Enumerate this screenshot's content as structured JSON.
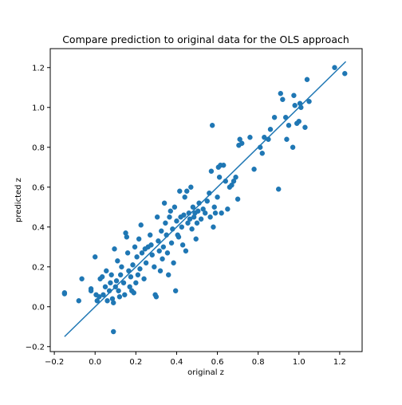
{
  "chart_data": {
    "type": "scatter",
    "title": "Compare prediction to original data for the OLS approach",
    "xlabel": "original z",
    "ylabel": "predicted z",
    "xlim": [
      -0.22,
      1.31
    ],
    "ylim": [
      -0.225,
      1.295
    ],
    "x_ticks": [
      -0.2,
      0.0,
      0.2,
      0.4,
      0.6,
      0.8,
      1.0,
      1.2
    ],
    "x_tick_labels": [
      "−0.2",
      "0.0",
      "0.2",
      "0.4",
      "0.6",
      "0.8",
      "1.0",
      "1.2"
    ],
    "y_ticks": [
      -0.2,
      0.0,
      0.2,
      0.4,
      0.6,
      0.8,
      1.0,
      1.2
    ],
    "y_tick_labels": [
      "−0.2",
      "0.0",
      "0.2",
      "0.4",
      "0.6",
      "0.8",
      "1.0",
      "1.2"
    ],
    "grid": false,
    "legend": null,
    "colors": {
      "points": "#1f77b4",
      "line": "#1f77b4"
    },
    "line": {
      "x": [
        -0.15,
        1.23
      ],
      "y": [
        -0.15,
        1.23
      ]
    },
    "points": [
      [
        -0.15,
        0.07
      ],
      [
        -0.15,
        0.065
      ],
      [
        -0.08,
        0.03
      ],
      [
        -0.065,
        0.14
      ],
      [
        -0.02,
        0.09
      ],
      [
        -0.02,
        0.08
      ],
      [
        0.0,
        0.25
      ],
      [
        0.005,
        0.06
      ],
      [
        0.01,
        0.03
      ],
      [
        0.02,
        0.05
      ],
      [
        0.025,
        0.14
      ],
      [
        0.035,
        0.15
      ],
      [
        0.04,
        0.06
      ],
      [
        0.05,
        0.1
      ],
      [
        0.055,
        0.18
      ],
      [
        0.06,
        0.03
      ],
      [
        0.07,
        0.08
      ],
      [
        0.075,
        0.12
      ],
      [
        0.08,
        0.16
      ],
      [
        0.085,
        0.04
      ],
      [
        0.09,
        0.02
      ],
      [
        0.095,
        0.29
      ],
      [
        0.1,
        0.1
      ],
      [
        0.105,
        0.13
      ],
      [
        0.11,
        0.23
      ],
      [
        0.115,
        0.08
      ],
      [
        0.12,
        0.05
      ],
      [
        0.125,
        0.16
      ],
      [
        0.13,
        0.2
      ],
      [
        0.14,
        0.12
      ],
      [
        0.145,
        0.06
      ],
      [
        0.15,
        0.37
      ],
      [
        0.155,
        0.35
      ],
      [
        0.16,
        0.27
      ],
      [
        0.165,
        0.18
      ],
      [
        0.17,
        0.1
      ],
      [
        0.175,
        0.15
      ],
      [
        0.18,
        0.08
      ],
      [
        0.185,
        0.21
      ],
      [
        0.19,
        0.07
      ],
      [
        0.195,
        0.3
      ],
      [
        0.2,
        0.12
      ],
      [
        0.205,
        0.25
      ],
      [
        0.21,
        0.16
      ],
      [
        0.215,
        0.34
      ],
      [
        0.22,
        0.19
      ],
      [
        0.225,
        0.41
      ],
      [
        0.23,
        0.27
      ],
      [
        0.24,
        0.14
      ],
      [
        0.245,
        0.29
      ],
      [
        0.25,
        0.22
      ],
      [
        0.26,
        0.3
      ],
      [
        0.27,
        0.36
      ],
      [
        0.275,
        0.31
      ],
      [
        0.28,
        0.26
      ],
      [
        0.29,
        0.2
      ],
      [
        0.295,
        0.06
      ],
      [
        0.3,
        0.05
      ],
      [
        0.305,
        0.45
      ],
      [
        0.31,
        0.33
      ],
      [
        0.315,
        0.28
      ],
      [
        0.32,
        0.18
      ],
      [
        0.325,
        0.38
      ],
      [
        0.33,
        0.24
      ],
      [
        0.335,
        0.3
      ],
      [
        0.34,
        0.52
      ],
      [
        0.345,
        0.42
      ],
      [
        0.35,
        0.36
      ],
      [
        0.355,
        0.27
      ],
      [
        0.36,
        0.16
      ],
      [
        0.365,
        0.45
      ],
      [
        0.37,
        0.48
      ],
      [
        0.375,
        0.32
      ],
      [
        0.38,
        0.39
      ],
      [
        0.385,
        0.22
      ],
      [
        0.39,
        0.5
      ],
      [
        0.395,
        0.08
      ],
      [
        0.4,
        0.43
      ],
      [
        0.405,
        0.36
      ],
      [
        0.41,
        0.35
      ],
      [
        0.415,
        0.58
      ],
      [
        0.42,
        0.45
      ],
      [
        0.425,
        0.4
      ],
      [
        0.43,
        0.31
      ],
      [
        0.435,
        0.46
      ],
      [
        0.44,
        0.55
      ],
      [
        0.445,
        0.28
      ],
      [
        0.45,
        0.58
      ],
      [
        0.455,
        0.42
      ],
      [
        0.46,
        0.47
      ],
      [
        0.465,
        0.44
      ],
      [
        0.47,
        0.6
      ],
      [
        0.475,
        0.39
      ],
      [
        0.48,
        0.5
      ],
      [
        0.485,
        0.45
      ],
      [
        0.49,
        0.47
      ],
      [
        0.495,
        0.34
      ],
      [
        0.5,
        0.42
      ],
      [
        0.505,
        0.48
      ],
      [
        0.51,
        0.52
      ],
      [
        0.52,
        0.44
      ],
      [
        0.53,
        0.49
      ],
      [
        0.54,
        0.47
      ],
      [
        0.55,
        0.53
      ],
      [
        0.56,
        0.57
      ],
      [
        0.565,
        0.45
      ],
      [
        0.57,
        0.68
      ],
      [
        0.575,
        0.91
      ],
      [
        0.58,
        0.4
      ],
      [
        0.585,
        0.5
      ],
      [
        0.59,
        0.47
      ],
      [
        0.6,
        0.55
      ],
      [
        0.605,
        0.7
      ],
      [
        0.61,
        0.65
      ],
      [
        0.615,
        0.71
      ],
      [
        0.62,
        0.47
      ],
      [
        0.63,
        0.71
      ],
      [
        0.64,
        0.63
      ],
      [
        0.65,
        0.49
      ],
      [
        0.66,
        0.6
      ],
      [
        0.67,
        0.61
      ],
      [
        0.68,
        0.63
      ],
      [
        0.69,
        0.65
      ],
      [
        0.7,
        0.54
      ],
      [
        0.705,
        0.81
      ],
      [
        0.71,
        0.84
      ],
      [
        0.72,
        0.82
      ],
      [
        0.76,
        0.85
      ],
      [
        0.78,
        0.69
      ],
      [
        0.81,
        0.8
      ],
      [
        0.82,
        0.77
      ],
      [
        0.83,
        0.85
      ],
      [
        0.85,
        0.84
      ],
      [
        0.86,
        0.89
      ],
      [
        0.88,
        0.95
      ],
      [
        0.9,
        0.59
      ],
      [
        0.91,
        1.07
      ],
      [
        0.92,
        1.04
      ],
      [
        0.935,
        0.95
      ],
      [
        0.94,
        0.84
      ],
      [
        0.95,
        0.91
      ],
      [
        0.97,
        0.8
      ],
      [
        0.975,
        1.06
      ],
      [
        0.98,
        1.01
      ],
      [
        0.99,
        0.92
      ],
      [
        1.0,
        0.93
      ],
      [
        1.005,
        1.02
      ],
      [
        1.01,
        1.0
      ],
      [
        1.03,
        0.9
      ],
      [
        1.04,
        1.14
      ],
      [
        1.05,
        1.03
      ],
      [
        1.175,
        1.2
      ],
      [
        1.225,
        1.17
      ],
      [
        0.09,
        -0.125
      ]
    ]
  }
}
